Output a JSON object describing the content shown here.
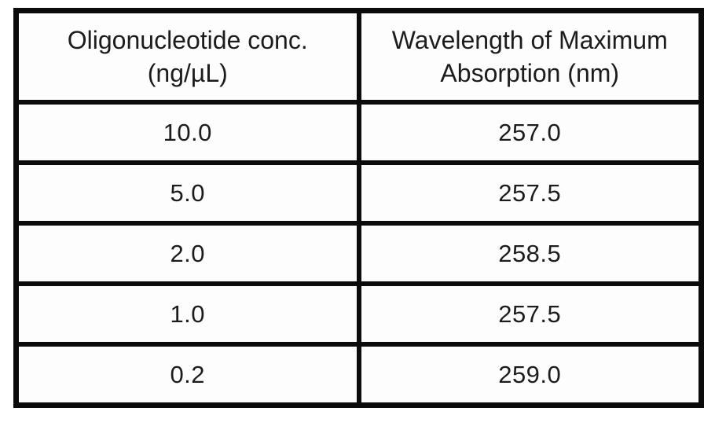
{
  "page": {
    "background_color": "#ffffff",
    "border_color": "#0b0b0b",
    "text_color": "#1c1c1c"
  },
  "table": {
    "headers": [
      {
        "label": "Oligonucleotide conc.\n(ng/µL)"
      },
      {
        "label": "Wavelength of Maximum\nAbsorption (nm)"
      }
    ],
    "rows": [
      {
        "conc": "10.0",
        "wavelength": "257.0"
      },
      {
        "conc": "5.0",
        "wavelength": "257.5"
      },
      {
        "conc": "2.0",
        "wavelength": "258.5"
      },
      {
        "conc": "1.0",
        "wavelength": "257.5"
      },
      {
        "conc": "0.2",
        "wavelength": "259.0"
      }
    ]
  },
  "chart_data": {
    "type": "table",
    "title": "",
    "columns": [
      "Oligonucleotide conc. (ng/µL)",
      "Wavelength of Maximum Absorption (nm)"
    ],
    "rows": [
      [
        10.0,
        257.0
      ],
      [
        5.0,
        257.5
      ],
      [
        2.0,
        258.5
      ],
      [
        1.0,
        257.5
      ],
      [
        0.2,
        259.0
      ]
    ]
  }
}
